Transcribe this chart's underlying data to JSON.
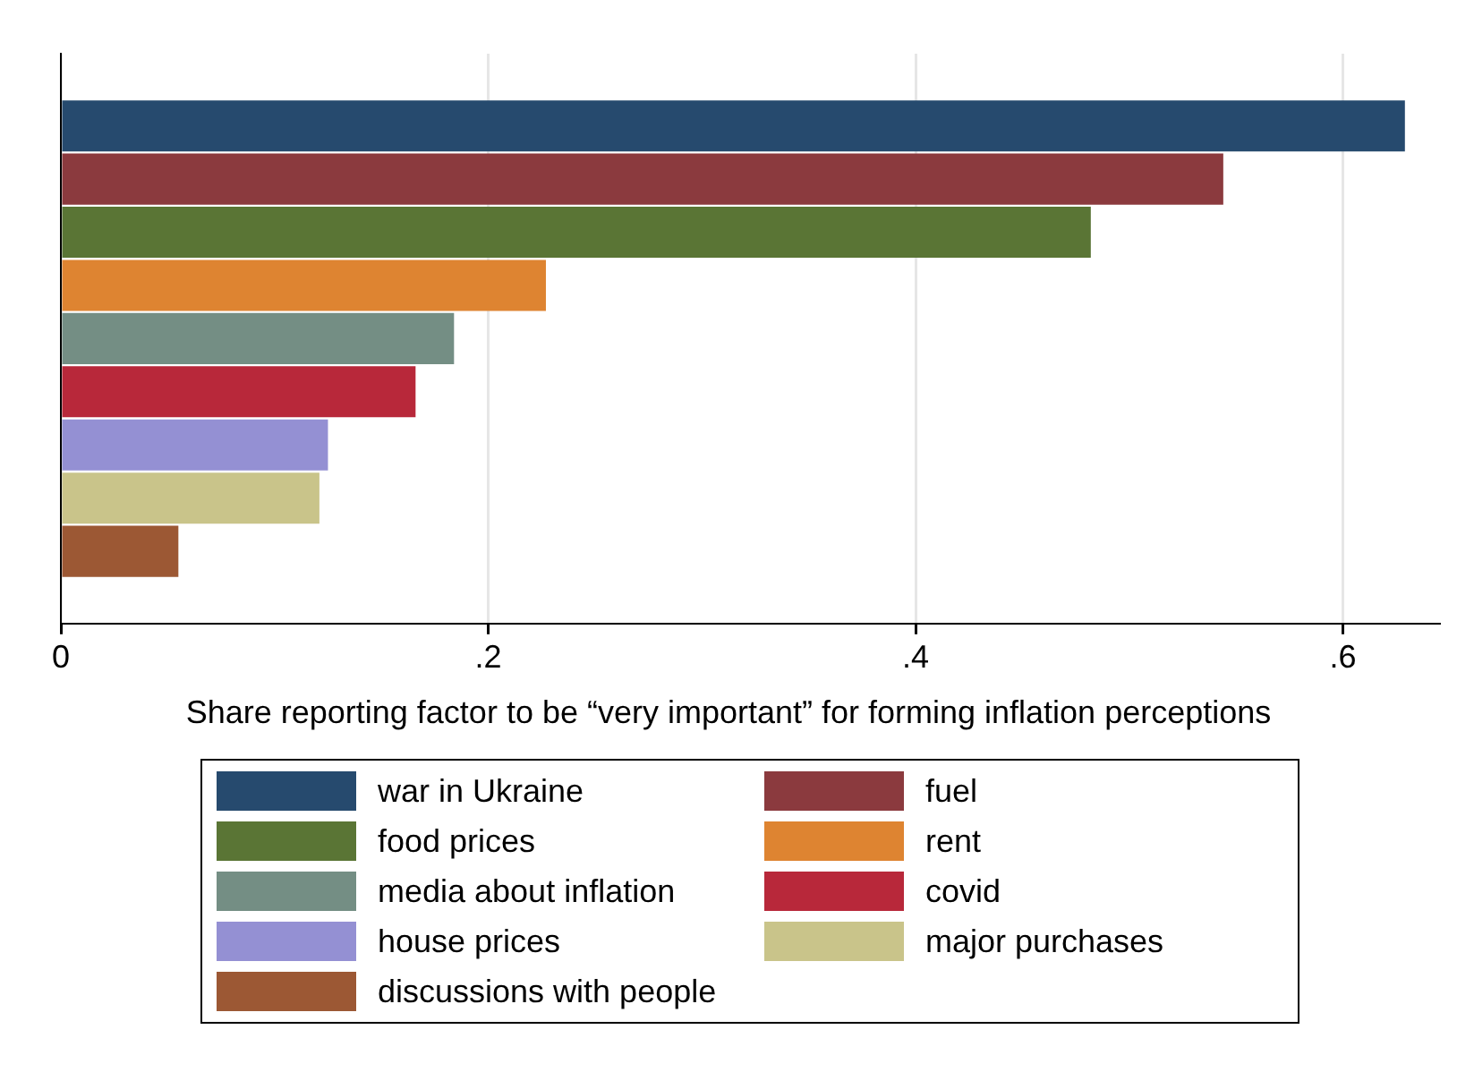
{
  "chart_data": {
    "type": "bar",
    "orientation": "horizontal",
    "xlabel": "Share reporting factor to be “very important” for forming inflation perceptions",
    "categories": [
      null
    ],
    "series": [
      {
        "name": "war in Ukraine",
        "color": "#264a6e",
        "values": [
          0.629
        ]
      },
      {
        "name": "fuel",
        "color": "#8b3a3e",
        "values": [
          0.544
        ]
      },
      {
        "name": "food prices",
        "color": "#5a7535",
        "values": [
          0.482
        ]
      },
      {
        "name": "rent",
        "color": "#de8431",
        "values": [
          0.227
        ]
      },
      {
        "name": "media about inflation",
        "color": "#748e84",
        "values": [
          0.184
        ]
      },
      {
        "name": "covid",
        "color": "#b8283a",
        "values": [
          0.166
        ]
      },
      {
        "name": "house prices",
        "color": "#9490d3",
        "values": [
          0.125
        ]
      },
      {
        "name": "major purchases",
        "color": "#c9c48a",
        "values": [
          0.121
        ]
      },
      {
        "name": "discussions with people",
        "color": "#9c5834",
        "values": [
          0.055
        ]
      }
    ],
    "xlim": [
      0,
      0.645
    ],
    "xticks": [
      0,
      {
        "value": 0.2,
        "label": ".2"
      },
      {
        "value": 0.4,
        "label": ".4"
      },
      {
        "value": 0.6,
        "label": ".6"
      }
    ],
    "grid": "x",
    "tick_labels": "x",
    "legend": "bottom"
  }
}
